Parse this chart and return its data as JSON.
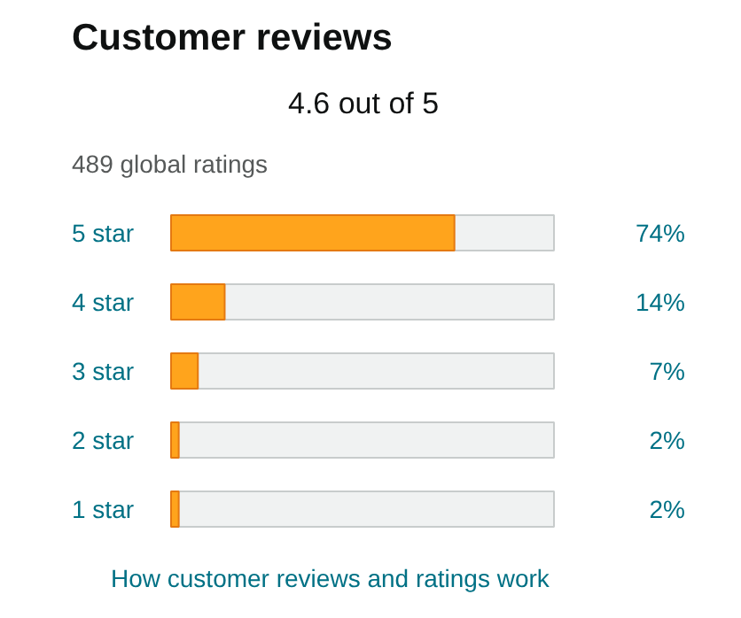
{
  "chart_data": {
    "type": "bar",
    "orientation": "horizontal",
    "title": "Customer reviews",
    "subtitle": "489 global ratings",
    "annotations": [
      "4.6 out of 5",
      "How customer reviews and ratings work"
    ],
    "categories": [
      "5 star",
      "4 star",
      "3 star",
      "2 star",
      "1 star"
    ],
    "values": [
      74,
      14,
      7,
      2,
      2
    ],
    "value_labels": [
      "74%",
      "14%",
      "7%",
      "2%",
      "2%"
    ],
    "color": "#ffa41c"
  }
}
